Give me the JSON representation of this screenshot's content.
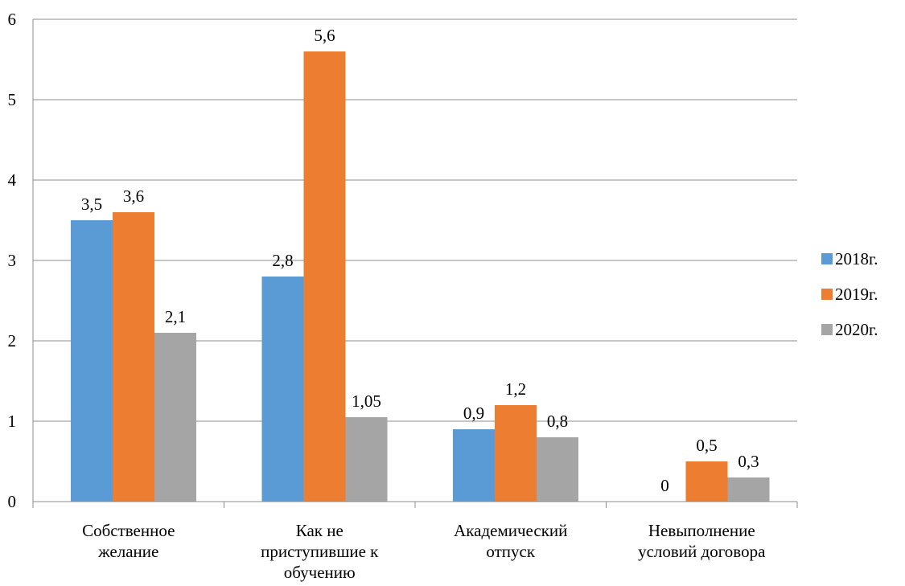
{
  "chart_data": {
    "type": "bar",
    "categories": [
      [
        "Собственное",
        "желание"
      ],
      [
        "Как не",
        "приступившие к",
        "обучению"
      ],
      [
        "Академический",
        "отпуск"
      ],
      [
        "Невыполнение",
        "условий договора"
      ]
    ],
    "series": [
      {
        "name": "2018г.",
        "color": "#5b9bd5",
        "values": [
          3.5,
          2.8,
          0.9,
          0
        ],
        "labels": [
          "3,5",
          "2,8",
          "0,9",
          "0"
        ]
      },
      {
        "name": "2019г.",
        "color": "#ed7d31",
        "values": [
          3.6,
          5.6,
          1.2,
          0.5
        ],
        "labels": [
          "3,6",
          "5,6",
          "1,2",
          "0,5"
        ]
      },
      {
        "name": "2020г.",
        "color": "#a5a5a5",
        "values": [
          2.1,
          1.05,
          0.8,
          0.3
        ],
        "labels": [
          "2,1",
          "1,05",
          "0,8",
          "0,3"
        ]
      }
    ],
    "yticks": [
      "0",
      "1",
      "2",
      "3",
      "4",
      "5",
      "6"
    ],
    "ylim": [
      0,
      6
    ],
    "grid": true,
    "legend": "right",
    "title": "",
    "xlabel": "",
    "ylabel": ""
  }
}
